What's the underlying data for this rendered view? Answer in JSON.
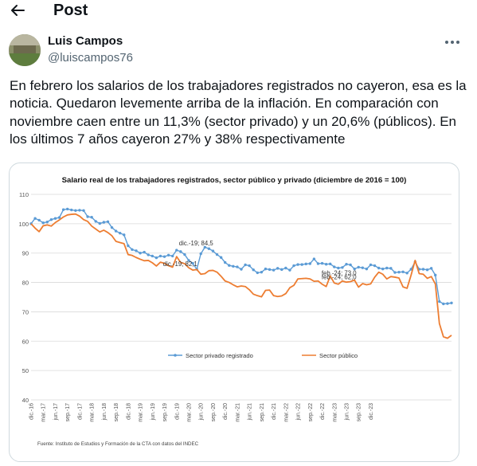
{
  "header": {
    "title": "Post",
    "back_icon": "arrow-left-icon"
  },
  "author": {
    "name": "Luis Campos",
    "handle": "@luiscampos76",
    "more_icon": "more-horizontal-icon"
  },
  "tweet_text": "En febrero los salarios de los trabajadores registrados no cayeron, esa es la noticia. Quedaron levemente arriba de la inflación. En comparación con noviembre caen entre un 11,3% (sector privado) y un 20,6% (públicos). En los últimos 7 años cayeron 27% y 38% respectivamente",
  "chart_data": {
    "type": "line",
    "title": "Salario real de los trabajadores registrados, sector público y privado (diciembre de 2016 = 100)",
    "ylim": [
      40,
      110
    ],
    "yticks": [
      "40",
      "50",
      "60",
      "70",
      "80",
      "90",
      "100",
      "110"
    ],
    "x_tick_labels": [
      "dic.-16",
      "mar.-17",
      "jun.-17",
      "sep.-17",
      "dic.-17",
      "mar.-18",
      "jun.-18",
      "sep.-18",
      "dic.-18",
      "mar.-19",
      "jun.-19",
      "sep.-19",
      "dic.-19",
      "mar.-20",
      "jun.-20",
      "sep.-20",
      "dic.-20",
      "mar.-21",
      "jun.-21",
      "sep.-21",
      "dic.-21",
      "mar.-22",
      "jun.-22",
      "sep.-22",
      "dic.-22",
      "mar.-23",
      "jun.-23",
      "sep.-23",
      "dic.-23"
    ],
    "grid": true,
    "legend_position": "bottom",
    "series": [
      {
        "name": "Sector privado registrado",
        "color": "#5b9bd5",
        "marker": true,
        "values": [
          100,
          101.8,
          101.2,
          100.3,
          100.6,
          101.4,
          101.8,
          102.1,
          104.8,
          105,
          104.7,
          104.5,
          104.6,
          104.5,
          102.4,
          102.2,
          100.8,
          100.1,
          100.5,
          100.7,
          98.7,
          97.5,
          96.8,
          96.2,
          92.5,
          91.2,
          90.8,
          90,
          90.3,
          89.4,
          89,
          88.4,
          89,
          88.8,
          89.3,
          89,
          91,
          90.5,
          89.5,
          87.5,
          86.5,
          84.5,
          89.8,
          92,
          91.5,
          90.7,
          89.5,
          88.5,
          86.8,
          85.8,
          85.5,
          85.3,
          84.5,
          86,
          85.7,
          84.3,
          83.3,
          83.5,
          84.6,
          84.4,
          84.2,
          84.8,
          84.4,
          84.9,
          84.2,
          85.7,
          86.1,
          86.1,
          86.3,
          86.4,
          88,
          86.4,
          86.5,
          86.2,
          86.3,
          85.3,
          84.9,
          85.1,
          86.2,
          86,
          84.6,
          85.2,
          85,
          84.6,
          86,
          85.7,
          84.9,
          84.6,
          84.9,
          84.8,
          83.4,
          83.5,
          83.6,
          83.2,
          84.5,
          87,
          84.5,
          84.5,
          84.3,
          84.8,
          82.5,
          73.5,
          72.7,
          72.8,
          73
        ]
      },
      {
        "name": "Sector público",
        "color": "#ed7d31",
        "marker": false,
        "values": [
          100,
          98.5,
          97.3,
          99.3,
          99.6,
          99.2,
          100.4,
          101.3,
          102.3,
          103,
          103.2,
          103.3,
          102.6,
          101.4,
          100.8,
          99.2,
          98.2,
          97.2,
          97.8,
          97,
          95.9,
          94,
          93.6,
          93.2,
          89.5,
          89.2,
          88.5,
          87.9,
          87.4,
          87.5,
          86.7,
          85.6,
          86.9,
          86.5,
          85.7,
          85.2,
          88.8,
          86.8,
          86.4,
          85,
          84.2,
          84.4,
          82.8,
          83,
          84,
          84.1,
          83.5,
          82.1,
          80.5,
          80,
          79.2,
          78.5,
          78.8,
          78.6,
          77.5,
          76,
          75.5,
          75.1,
          77.3,
          77.4,
          75.5,
          75.2,
          75.4,
          76.2,
          78.2,
          79,
          81.2,
          81.3,
          81.4,
          81.2,
          80.4,
          80.5,
          79.4,
          78.6,
          82.2,
          79.8,
          79.4,
          80.5,
          80.1,
          80.3,
          80.8,
          78.4,
          79.6,
          79.2,
          79.5,
          81.8,
          83.5,
          82.8,
          81.2,
          82,
          81.8,
          81.5,
          78.5,
          78,
          82.5,
          87.5,
          83,
          82.8,
          81.4,
          82,
          79.5,
          66,
          61.5,
          61,
          62
        ]
      }
    ],
    "annotations": [
      {
        "text": "dic.-19; 84,5",
        "series": 0,
        "index": 36
      },
      {
        "text": "dic.-19; 82,1",
        "series": 1,
        "index": 36
      },
      {
        "text": "feb.-24; 73,0",
        "series": 0,
        "index": 86
      },
      {
        "text": "feb.-24; 62,0",
        "series": 1,
        "index": 86
      }
    ],
    "source_note": "Fuente: Instituto de Estudios y Formación de la CTA con datos del INDEC"
  }
}
